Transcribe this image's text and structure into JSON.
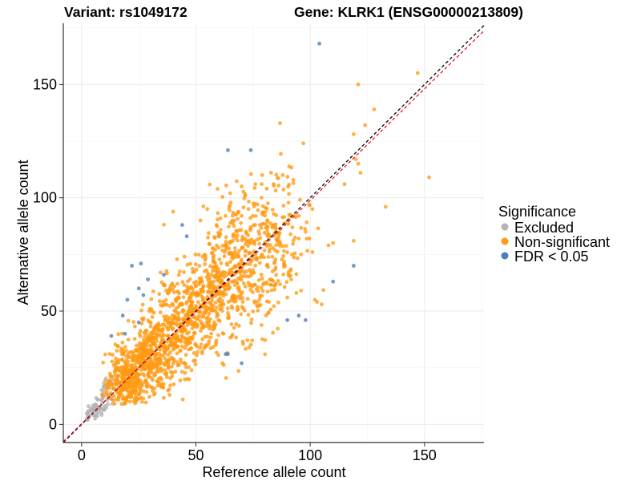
{
  "chart_data": {
    "type": "scatter",
    "title_variant": "Variant: rs1049172",
    "title_gene": "Gene: KLRK1 (ENSG00000213809)",
    "xlabel": "Reference allele count",
    "ylabel": "Alternative allele count",
    "xlim": [
      -8,
      176
    ],
    "ylim": [
      -8,
      177
    ],
    "xticks": [
      0,
      50,
      100,
      150
    ],
    "yticks": [
      0,
      50,
      100,
      150
    ],
    "grid": true,
    "reference_lines": [
      {
        "name": "identity",
        "slope": 1,
        "intercept": 0,
        "color": "#000000",
        "dash": "dashed"
      },
      {
        "name": "fit",
        "slope": 0.985,
        "intercept": 0.3,
        "color": "#e8112d",
        "dash": "dashed"
      }
    ],
    "legend": {
      "title": "Significance",
      "position": "right",
      "entries": [
        {
          "label": "Excluded",
          "color": "#b3b3b3"
        },
        {
          "label": "Non-significant",
          "color": "#ff9a12"
        },
        {
          "label": "FDR < 0.05",
          "color": "#4a7fb8"
        }
      ]
    },
    "generated_cloud": {
      "note": "Dense point clouds approximated from the visible distribution",
      "excluded": {
        "count": 90,
        "x_range": [
          2,
          14
        ],
        "y_range": [
          2,
          24
        ],
        "color": "#b3b3b3"
      },
      "non_significant": {
        "count": 1700,
        "center": [
          35,
          33
        ],
        "color": "#ff9a12"
      }
    },
    "series": [
      {
        "name": "FDR < 0.05",
        "color": "#4a7fb8",
        "points": [
          [
            104,
            168
          ],
          [
            64,
            121
          ],
          [
            74,
            121
          ],
          [
            44,
            88
          ],
          [
            46,
            83
          ],
          [
            26,
            71
          ],
          [
            22,
            70
          ],
          [
            29,
            64
          ],
          [
            36,
            66
          ],
          [
            27,
            57
          ],
          [
            25,
            60
          ],
          [
            119,
            70
          ],
          [
            110,
            63
          ],
          [
            98,
            46
          ],
          [
            90,
            46
          ],
          [
            95,
            48
          ],
          [
            13,
            39
          ],
          [
            19,
            40
          ],
          [
            18,
            48
          ],
          [
            64,
            31
          ],
          [
            63,
            31
          ],
          [
            70,
            27
          ],
          [
            25,
            45
          ],
          [
            20,
            55
          ]
        ]
      },
      {
        "name": "Non-significant (outliers)",
        "color": "#ff9a12",
        "points": [
          [
            121,
            150
          ],
          [
            147,
            155
          ],
          [
            128,
            139
          ],
          [
            124,
            132
          ],
          [
            133,
            96
          ],
          [
            152,
            109
          ],
          [
            97,
            124
          ],
          [
            119,
            128
          ],
          [
            120,
            117
          ],
          [
            121,
            115
          ],
          [
            122,
            111
          ],
          [
            115,
            106
          ],
          [
            101,
            95
          ],
          [
            93,
            92
          ],
          [
            81,
            104
          ],
          [
            77,
            97
          ],
          [
            70,
            105
          ],
          [
            88,
            110
          ],
          [
            79,
            110
          ],
          [
            76,
            106
          ],
          [
            84,
            106
          ],
          [
            119,
            81
          ],
          [
            98,
            85
          ],
          [
            95,
            82
          ],
          [
            89,
            70
          ],
          [
            96,
            59
          ],
          [
            101,
            76
          ],
          [
            110,
            80
          ],
          [
            108,
            79
          ],
          [
            105,
            53
          ],
          [
            102,
            55
          ],
          [
            94,
            58
          ],
          [
            90,
            56
          ],
          [
            81,
            62
          ],
          [
            85,
            62
          ],
          [
            82,
            54
          ],
          [
            96,
            75
          ],
          [
            86,
            82
          ],
          [
            78,
            88
          ],
          [
            70,
            92
          ],
          [
            66,
            90
          ],
          [
            60,
            78
          ],
          [
            59,
            88
          ],
          [
            55,
            95
          ],
          [
            52,
            90
          ],
          [
            65,
            102
          ],
          [
            73,
            95
          ]
        ]
      }
    ]
  }
}
